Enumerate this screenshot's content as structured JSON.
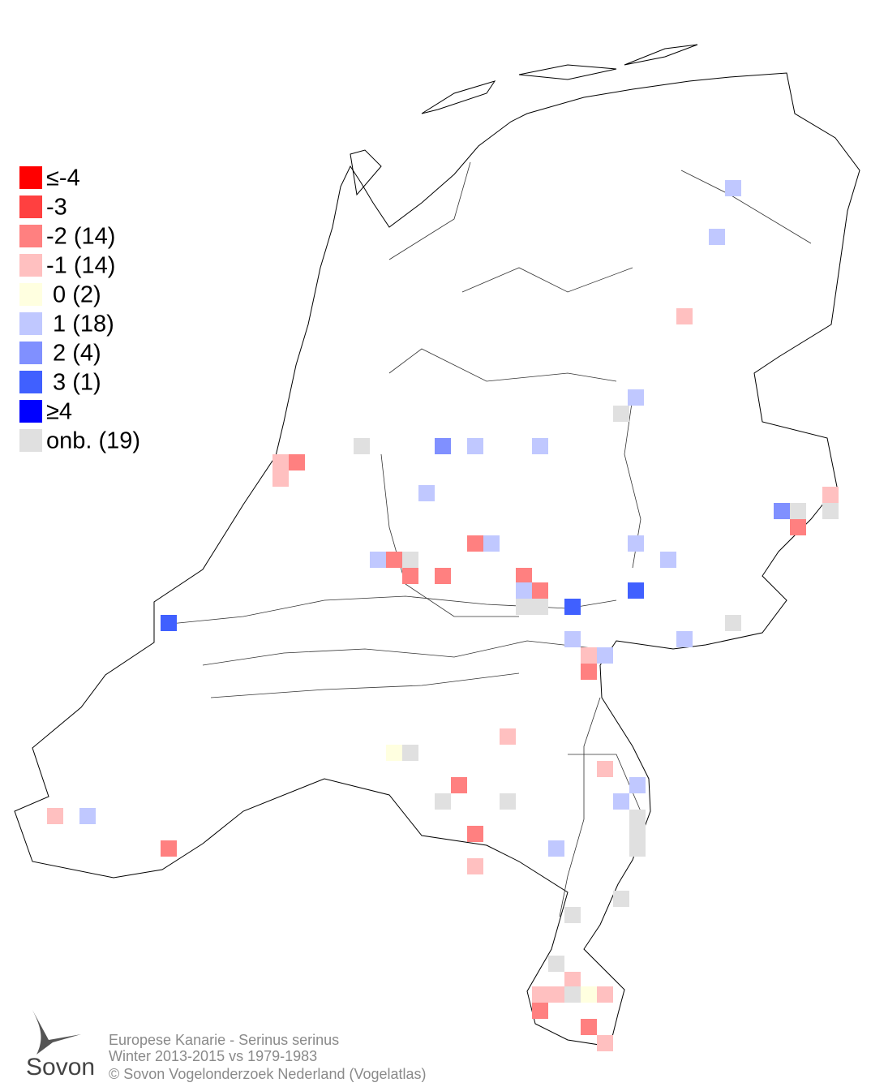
{
  "legend": [
    {
      "label": "≤-4",
      "color": "#ff0000"
    },
    {
      "label": "-3",
      "color": "#ff4040"
    },
    {
      "label": "-2 (14)",
      "color": "#ff8080"
    },
    {
      "label": "-1 (14)",
      "color": "#ffc0c0"
    },
    {
      "label": " 0 (2)",
      "color": "#ffffe0"
    },
    {
      "label": " 1 (18)",
      "color": "#c0c8ff"
    },
    {
      "label": " 2 (4)",
      "color": "#8090ff"
    },
    {
      "label": " 3 (1)",
      "color": "#4060ff"
    },
    {
      "label": "≥4",
      "color": "#0000ff"
    },
    {
      "label": "onb. (19)",
      "color": "#e0e0e0"
    }
  ],
  "caption": [
    "Europese Kanarie - Serinus serinus",
    "Winter 2013-2015 vs 1979-1983",
    "© Sovon Vogelonderzoek Nederland (Vogelatlas)"
  ],
  "logo": "Sovon"
}
